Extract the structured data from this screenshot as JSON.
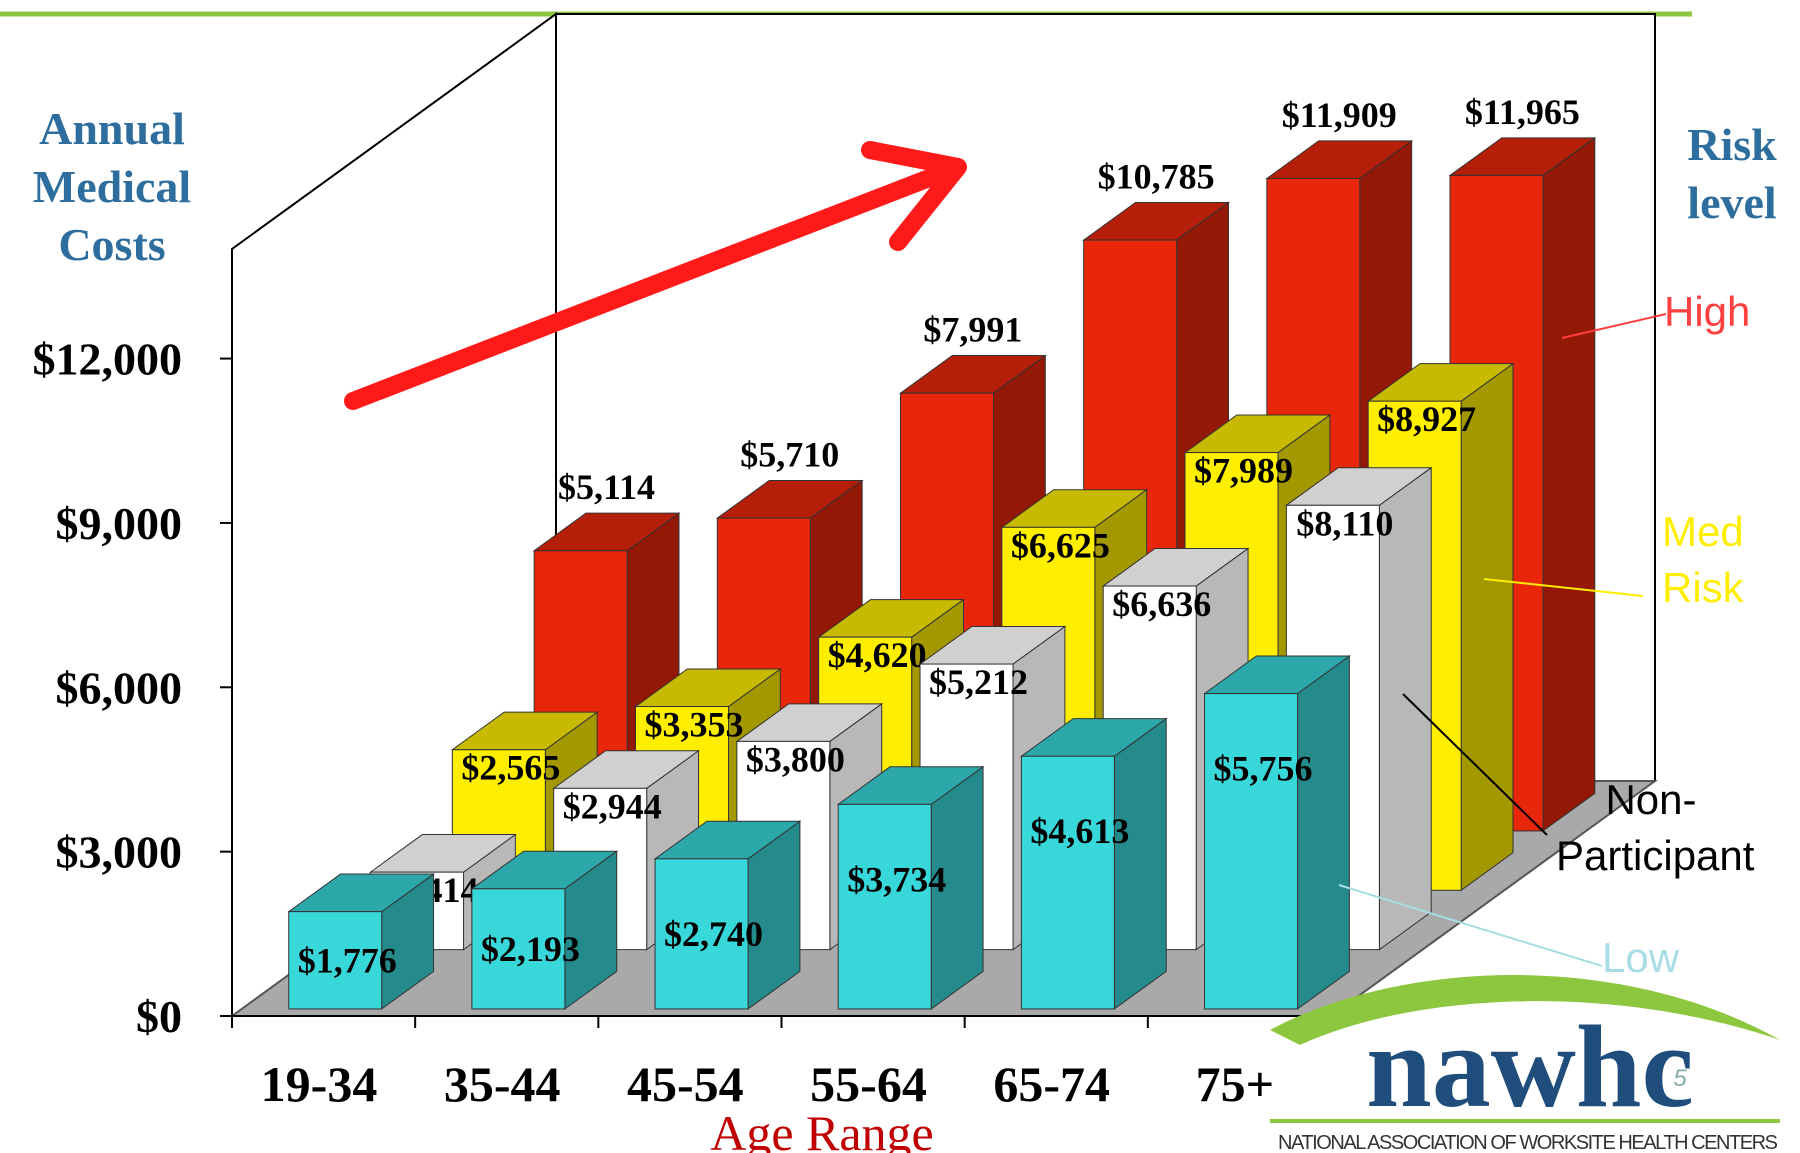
{
  "chart_data": {
    "type": "bar3d",
    "y_axis_title": "Annual Medical Costs",
    "x_axis_title": "Age Range",
    "legend_title": "Risk level",
    "categories": [
      "19-34",
      "35-44",
      "45-54",
      "55-64",
      "65-74",
      "75+"
    ],
    "ylim": [
      0,
      14000
    ],
    "yticks": [
      {
        "value": 0,
        "label": "$0"
      },
      {
        "value": 3000,
        "label": "$3,000"
      },
      {
        "value": 6000,
        "label": "$6,000"
      },
      {
        "value": 9000,
        "label": "$9,000"
      },
      {
        "value": 12000,
        "label": "$12,000"
      }
    ],
    "series": [
      {
        "name": "Low",
        "color": "#38d8da",
        "values": [
          1776,
          2193,
          2740,
          3734,
          4613,
          5756
        ],
        "value_labels": [
          "$1,776",
          "$2,193",
          "$2,740",
          "$3,734",
          "$4,613",
          "$5,756"
        ]
      },
      {
        "name": "Non-Participant",
        "color": "#ffffff",
        "values": [
          1414,
          2944,
          3800,
          5212,
          6636,
          8110
        ],
        "value_labels": [
          "$1,414",
          "$2,944",
          "$3,800",
          "$5,212",
          "$6,636",
          "$8,110"
        ]
      },
      {
        "name": "Med Risk",
        "color": "#ffee00",
        "values": [
          2565,
          3353,
          4620,
          6625,
          7989,
          8927
        ],
        "value_labels": [
          "$2,565",
          "$3,353",
          "$4,620",
          "$6,625",
          "$7,989",
          "$8,927"
        ]
      },
      {
        "name": "High",
        "color": "#e8260a",
        "values": [
          5114,
          5710,
          7991,
          10785,
          11909,
          11965
        ],
        "value_labels": [
          "$5,114",
          "$5,710",
          "$7,991",
          "$10,785",
          "$11,909",
          "$11,965"
        ]
      }
    ]
  },
  "logo": {
    "name": "nawhc",
    "tagline": "NATIONAL ASSOCIATION OF WORKSITE HEALTH CENTERS"
  },
  "page_number": "5"
}
